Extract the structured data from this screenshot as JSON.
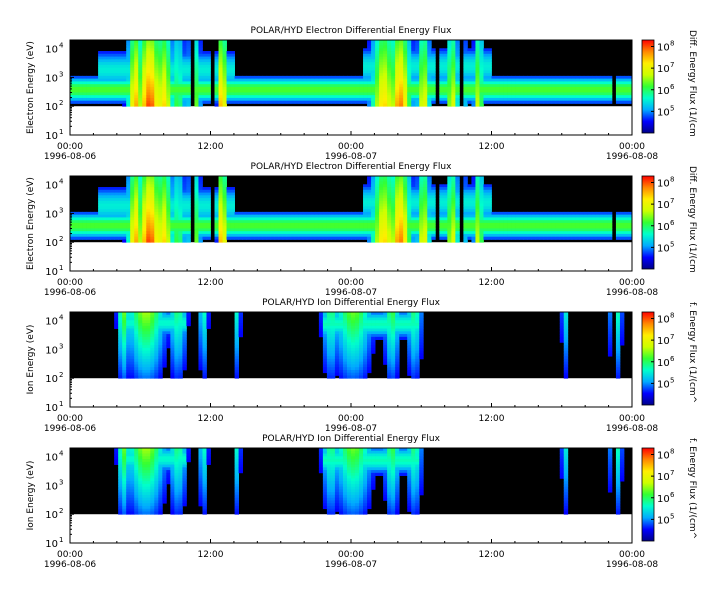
{
  "chart_data": [
    {
      "type": "heatmap",
      "title": "POLAR/HYD  Electron Differential Energy Flux",
      "ylabel": "Electron Energy (eV)",
      "cbar_label": "Diff. Energy Flux (1/(cm",
      "x_ticks": [
        {
          "time": "00:00",
          "date": "1996-08-06"
        },
        {
          "time": "12:00",
          "date": ""
        },
        {
          "time": "00:00",
          "date": "1996-08-07"
        },
        {
          "time": "12:00",
          "date": ""
        },
        {
          "time": "00:00",
          "date": "1996-08-08"
        }
      ],
      "y_exponents": [
        "1",
        "2",
        "3",
        "4"
      ],
      "ylim": [
        10,
        20000
      ],
      "y_scale": "log",
      "cbar_exponents": [
        "5",
        "6",
        "7",
        "8"
      ],
      "clim": [
        10000,
        200000000
      ],
      "data_min_energy_ev": 100,
      "bursts": [
        {
          "t": 5.6,
          "w": 0.5,
          "i": 0.75
        },
        {
          "t": 6.8,
          "w": 0.8,
          "i": 0.85
        },
        {
          "t": 8.0,
          "w": 0.6,
          "i": 0.7
        },
        {
          "t": 9.2,
          "w": 0.5,
          "i": 0.45
        },
        {
          "t": 10.6,
          "w": 0.4,
          "i": 0.55
        },
        {
          "t": 13.0,
          "w": 0.25,
          "i": 0.85
        },
        {
          "t": 26.8,
          "w": 0.8,
          "i": 0.7
        },
        {
          "t": 28.2,
          "w": 0.7,
          "i": 0.8
        },
        {
          "t": 30.2,
          "w": 0.4,
          "i": 0.65
        },
        {
          "t": 32.6,
          "w": 0.25,
          "i": 0.7
        },
        {
          "t": 33.4,
          "w": 0.3,
          "i": 0.55
        },
        {
          "t": 34.9,
          "w": 0.3,
          "i": 0.6
        }
      ],
      "gaps": [
        [
          10.3,
          10.6
        ],
        [
          11.9,
          12.2
        ],
        [
          31.3,
          31.6
        ],
        [
          33.2,
          33.6
        ],
        [
          46.3,
          46.6
        ]
      ]
    },
    {
      "type": "heatmap",
      "title": "POLAR/HYD  Electron Differential Energy Flux",
      "ylabel": "Electron Energy (eV)",
      "cbar_label": "Diff. Energy Flux (1/(cm",
      "x_ticks": [
        {
          "time": "00:00",
          "date": "1996-08-06"
        },
        {
          "time": "12:00",
          "date": ""
        },
        {
          "time": "00:00",
          "date": "1996-08-07"
        },
        {
          "time": "12:00",
          "date": ""
        },
        {
          "time": "00:00",
          "date": "1996-08-08"
        }
      ],
      "y_exponents": [
        "1",
        "2",
        "3",
        "4"
      ],
      "ylim": [
        10,
        20000
      ],
      "y_scale": "log",
      "cbar_exponents": [
        "5",
        "6",
        "7",
        "8"
      ],
      "clim": [
        10000,
        200000000
      ],
      "data_min_energy_ev": 100,
      "bursts": [
        {
          "t": 5.6,
          "w": 0.5,
          "i": 0.75
        },
        {
          "t": 6.8,
          "w": 0.8,
          "i": 0.85
        },
        {
          "t": 8.0,
          "w": 0.6,
          "i": 0.7
        },
        {
          "t": 9.2,
          "w": 0.5,
          "i": 0.45
        },
        {
          "t": 10.6,
          "w": 0.4,
          "i": 0.55
        },
        {
          "t": 13.0,
          "w": 0.25,
          "i": 0.85
        },
        {
          "t": 26.8,
          "w": 0.8,
          "i": 0.7
        },
        {
          "t": 28.2,
          "w": 0.7,
          "i": 0.8
        },
        {
          "t": 30.2,
          "w": 0.4,
          "i": 0.65
        },
        {
          "t": 32.6,
          "w": 0.25,
          "i": 0.7
        },
        {
          "t": 33.4,
          "w": 0.3,
          "i": 0.55
        },
        {
          "t": 34.9,
          "w": 0.3,
          "i": 0.6
        }
      ],
      "gaps": [
        [
          10.3,
          10.6
        ],
        [
          11.9,
          12.2
        ],
        [
          31.3,
          31.6
        ],
        [
          33.2,
          33.6
        ],
        [
          46.3,
          46.6
        ]
      ]
    },
    {
      "type": "heatmap",
      "title": "POLAR/HYD  Ion Differential Energy Flux",
      "ylabel": "Ion Energy (eV)",
      "cbar_label": "f. Energy Flux (1/(cm^",
      "x_ticks": [
        {
          "time": "00:00",
          "date": "1996-08-06"
        },
        {
          "time": "12:00",
          "date": ""
        },
        {
          "time": "00:00",
          "date": "1996-08-07"
        },
        {
          "time": "12:00",
          "date": ""
        },
        {
          "time": "00:00",
          "date": "1996-08-08"
        }
      ],
      "y_exponents": [
        "1",
        "2",
        "3",
        "4"
      ],
      "ylim": [
        10,
        20000
      ],
      "y_scale": "log",
      "cbar_exponents": [
        "5",
        "6",
        "7",
        "8"
      ],
      "clim": [
        10000,
        200000000
      ],
      "data_min_energy_ev": 100,
      "bursts": [
        {
          "t": 4.6,
          "w": 0.4,
          "i": 0.55
        },
        {
          "t": 6.5,
          "w": 1.2,
          "i": 0.6
        },
        {
          "t": 9.2,
          "w": 0.6,
          "i": 0.45
        },
        {
          "t": 11.4,
          "w": 0.3,
          "i": 0.4
        },
        {
          "t": 14.3,
          "w": 0.2,
          "i": 0.4
        },
        {
          "t": 22.3,
          "w": 0.6,
          "i": 0.45
        },
        {
          "t": 24.2,
          "w": 1.2,
          "i": 0.55
        },
        {
          "t": 27.5,
          "w": 0.5,
          "i": 0.5
        },
        {
          "t": 29.4,
          "w": 0.5,
          "i": 0.45
        },
        {
          "t": 42.3,
          "w": 0.25,
          "i": 0.35
        },
        {
          "t": 46.6,
          "w": 0.4,
          "i": 0.45
        }
      ],
      "gaps": [
        [
          11.9,
          12.2
        ],
        [
          31.3,
          31.6
        ],
        [
          33.2,
          33.6
        ],
        [
          46.3,
          46.6
        ]
      ]
    },
    {
      "type": "heatmap",
      "title": "POLAR/HYD  Ion Differential Energy Flux",
      "ylabel": "Ion Energy (eV)",
      "cbar_label": "f. Energy Flux (1/(cm^",
      "x_ticks": [
        {
          "time": "00:00",
          "date": "1996-08-06"
        },
        {
          "time": "12:00",
          "date": ""
        },
        {
          "time": "00:00",
          "date": "1996-08-07"
        },
        {
          "time": "12:00",
          "date": ""
        },
        {
          "time": "00:00",
          "date": "1996-08-08"
        }
      ],
      "y_exponents": [
        "1",
        "2",
        "3",
        "4"
      ],
      "ylim": [
        10,
        20000
      ],
      "y_scale": "log",
      "cbar_exponents": [
        "5",
        "6",
        "7",
        "8"
      ],
      "clim": [
        10000,
        200000000
      ],
      "data_min_energy_ev": 100,
      "bursts": [
        {
          "t": 4.6,
          "w": 0.4,
          "i": 0.55
        },
        {
          "t": 6.5,
          "w": 1.2,
          "i": 0.6
        },
        {
          "t": 9.2,
          "w": 0.6,
          "i": 0.45
        },
        {
          "t": 11.4,
          "w": 0.3,
          "i": 0.4
        },
        {
          "t": 14.3,
          "w": 0.2,
          "i": 0.4
        },
        {
          "t": 22.3,
          "w": 0.6,
          "i": 0.45
        },
        {
          "t": 24.2,
          "w": 1.2,
          "i": 0.55
        },
        {
          "t": 27.5,
          "w": 0.5,
          "i": 0.5
        },
        {
          "t": 29.4,
          "w": 0.5,
          "i": 0.45
        },
        {
          "t": 42.3,
          "w": 0.25,
          "i": 0.35
        },
        {
          "t": 46.6,
          "w": 0.4,
          "i": 0.45
        }
      ],
      "gaps": [
        [
          11.9,
          12.2
        ],
        [
          31.3,
          31.6
        ],
        [
          33.2,
          33.6
        ],
        [
          46.3,
          46.6
        ]
      ]
    }
  ],
  "colors": {
    "background": "#ffffff",
    "fill_value": "#000000",
    "colormap": [
      "#000088",
      "#0000ff",
      "#00aaff",
      "#00ffcc",
      "#33ff33",
      "#ccff00",
      "#ffee00",
      "#ff8800",
      "#ff0000"
    ]
  }
}
